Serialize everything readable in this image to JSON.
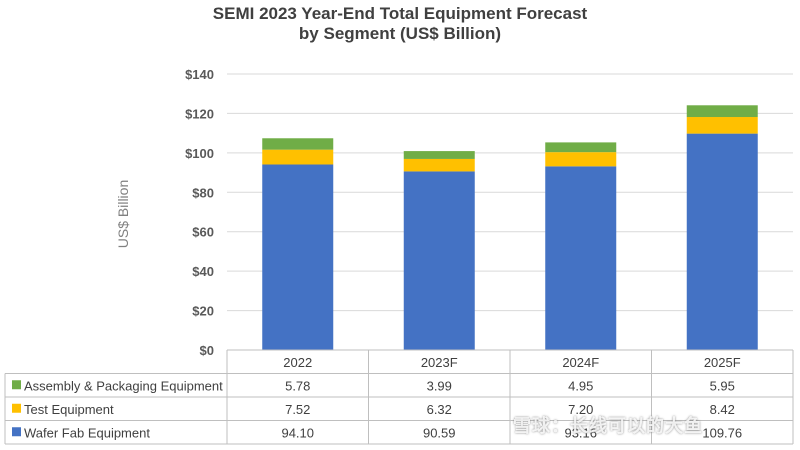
{
  "chart_data": {
    "type": "bar",
    "stacked": true,
    "title_line1": "SEMI 2023 Year-End Total Equipment Forecast",
    "title_line2": "by Segment (US$ Billion)",
    "ylabel": "US$ Billion",
    "ylim": [
      0,
      140
    ],
    "yticks": [
      "$0",
      "$20",
      "$40",
      "$60",
      "$80",
      "$100",
      "$120",
      "$140"
    ],
    "grid": true,
    "categories": [
      "2022",
      "2023F",
      "2024F",
      "2025F"
    ],
    "series": [
      {
        "name": "Wafer Fab Equipment",
        "color": "#4472C4",
        "values": [
          94.1,
          90.59,
          93.16,
          109.76
        ],
        "labels": [
          "94.10",
          "90.59",
          "93.16",
          "109.76"
        ]
      },
      {
        "name": "Test Equipment",
        "color": "#FFC000",
        "values": [
          7.52,
          6.32,
          7.2,
          8.42
        ],
        "labels": [
          "7.52",
          "6.32",
          "7.20",
          "8.42"
        ]
      },
      {
        "name": "Assembly & Packaging Equipment",
        "color": "#70AD47",
        "values": [
          5.78,
          3.99,
          4.95,
          5.95
        ],
        "labels": [
          "5.78",
          "3.99",
          "4.95",
          "5.95"
        ]
      }
    ],
    "table_row_order": [
      "Assembly & Packaging Equipment",
      "Test Equipment",
      "Wafer Fab Equipment"
    ]
  },
  "watermark": "雪球：长线可以的大鱼"
}
